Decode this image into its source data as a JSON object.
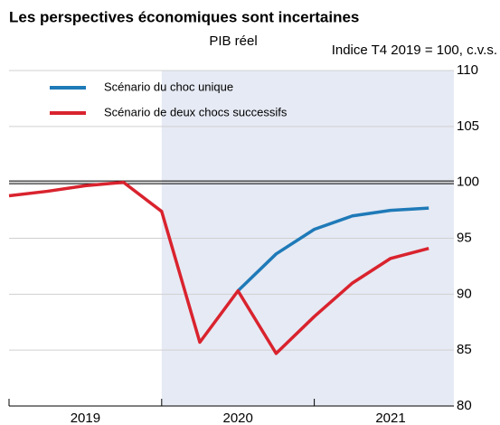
{
  "chart_data": {
    "type": "line",
    "title": "Les perspectives économiques sont incertaines",
    "subtitle": "PIB réel",
    "y_label": "Indice T4 2019 = 100, c.v.s.",
    "categories": [
      null,
      null,
      null,
      null,
      null,
      null,
      null,
      null,
      null,
      null,
      null,
      null
    ],
    "year_labels": [
      "2019",
      "2020",
      "2021"
    ],
    "series": [
      {
        "name": "Scénario du choc unique",
        "color": "#1f7ab8",
        "values": [
          null,
          null,
          null,
          null,
          null,
          null,
          90.3,
          93.6,
          95.8,
          97.0,
          97.5,
          97.7
        ]
      },
      {
        "name": "Scénario de deux chocs successifs",
        "color": "#d9232e",
        "values": [
          98.8,
          99.2,
          99.7,
          100.0,
          97.4,
          85.7,
          90.3,
          84.7,
          88.0,
          91.0,
          93.2,
          94.1
        ]
      }
    ],
    "ylim": [
      80,
      110
    ],
    "yticks": [
      80,
      85,
      90,
      95,
      100,
      105,
      110
    ],
    "reference_line": 100,
    "shade_from": 4,
    "grid": true
  }
}
